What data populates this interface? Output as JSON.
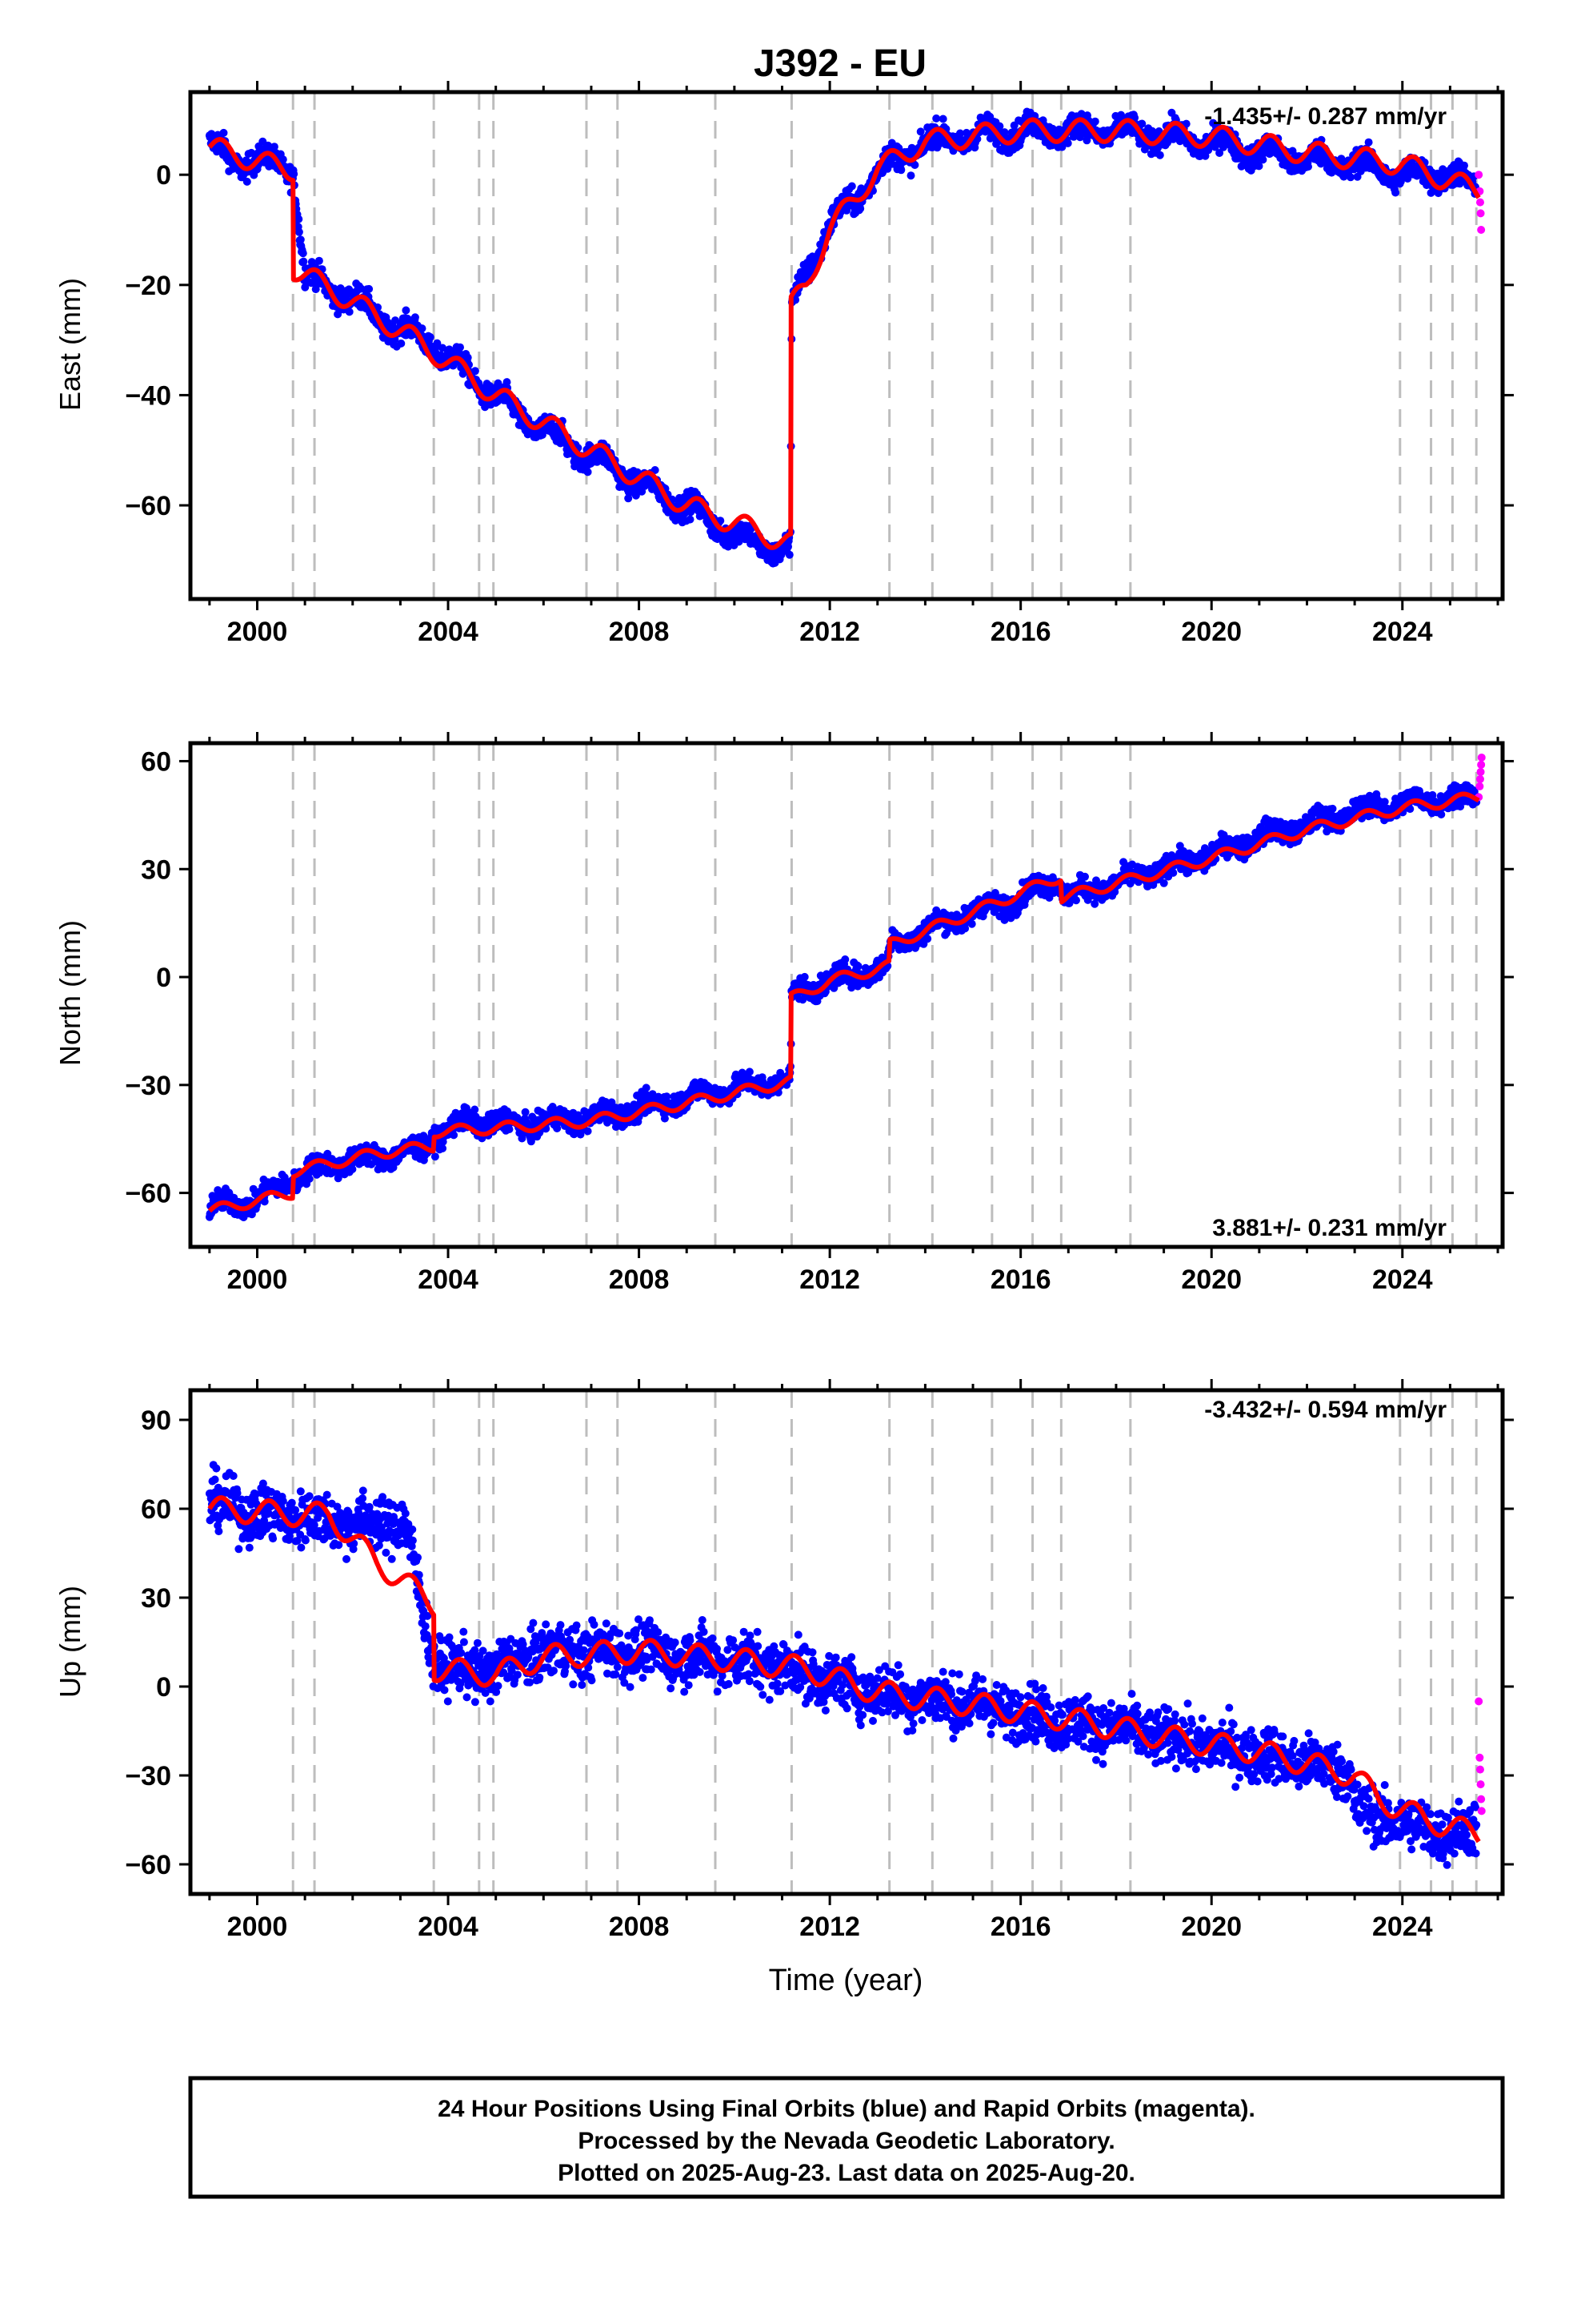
{
  "colors": {
    "final_orbits": "#0000ff",
    "rapid_orbits": "#ff00ff",
    "model_fit": "#ff0000",
    "event_lines": "#bdbdbd",
    "frame": "#000000"
  },
  "chart_data": [
    {
      "panel": "east",
      "type": "scatter",
      "title": "J392 - EU",
      "xlabel": "",
      "ylabel": "East (mm)",
      "rate": "-1.435+/- 0.287 mm/yr",
      "rate_placement": "top-right",
      "xlim": [
        1998.6,
        2026.1
      ],
      "ylim": [
        -77,
        15
      ],
      "xticks": [
        2000,
        2004,
        2008,
        2012,
        2016,
        2020,
        2024
      ],
      "yticks": [
        0,
        -20,
        -40,
        -60
      ],
      "event_lines": [
        2000.75,
        2001.2,
        2003.7,
        2004.65,
        2004.95,
        2006.9,
        2007.55,
        2009.6,
        2011.2,
        2013.25,
        2014.15,
        2015.4,
        2016.25,
        2016.85,
        2018.3,
        2023.95,
        2024.6,
        2025.05,
        2025.55
      ],
      "series": [
        {
          "style": "dots",
          "color": "#0000ff",
          "scatter_mm": 2.2,
          "x": [
            1999.0,
            1999.5,
            2000.0,
            2000.6,
            2000.75,
            2001.0,
            2001.5,
            2002.0,
            2002.5,
            2003.0,
            2003.5,
            2004.0,
            2004.5,
            2005.0,
            2005.5,
            2006.0,
            2006.5,
            2007.0,
            2007.5,
            2008.0,
            2008.5,
            2009.0,
            2009.5,
            2010.0,
            2010.5,
            2011.0,
            2011.18,
            2011.2,
            2011.5,
            2012.0,
            2012.5,
            2013.0,
            2013.5,
            2014.0,
            2015.0,
            2016.0,
            2017.0,
            2018.0,
            2019.0,
            2020.0,
            2021.0,
            2022.0,
            2023.0,
            2024.0,
            2025.0,
            2025.55
          ],
          "y": [
            6,
            2,
            3,
            1,
            1,
            -18,
            -21,
            -22,
            -26,
            -28,
            -30,
            -33,
            -37,
            -40,
            -44,
            -46,
            -49,
            -51,
            -53,
            -56,
            -58,
            -60,
            -63,
            -65,
            -67,
            -68,
            -68,
            -24,
            -18,
            -9,
            -5,
            1,
            3,
            6,
            7,
            8,
            8,
            8,
            7,
            6,
            4,
            3,
            2,
            0,
            0,
            -3
          ]
        },
        {
          "style": "dots",
          "color": "#ff00ff",
          "scatter_mm": 0,
          "x": [
            2025.6,
            2025.62,
            2025.63,
            2025.64,
            2025.65
          ],
          "y": [
            0,
            -3,
            -5,
            -7,
            -10
          ]
        },
        {
          "style": "line",
          "color": "#ff0000",
          "seasonal_mm": 2,
          "x": [
            1999.0,
            2000.6,
            2000.75,
            2000.76,
            2002.0,
            2003.5,
            2005.0,
            2007.0,
            2009.0,
            2011.18,
            2011.19,
            2011.5,
            2012.0,
            2013.0,
            2014.0,
            2016.0,
            2018.0,
            2020.0,
            2022.0,
            2024.0,
            2025.6
          ],
          "y": [
            5,
            1,
            1,
            -17,
            -23,
            -31,
            -40,
            -50,
            -60,
            -67,
            -24,
            -20,
            -10,
            1,
            6,
            8,
            8,
            7,
            4,
            2,
            -3
          ]
        }
      ]
    },
    {
      "panel": "north",
      "type": "scatter",
      "title": "",
      "xlabel": "",
      "ylabel": "North (mm)",
      "rate": "3.881+/- 0.231 mm/yr",
      "rate_placement": "bottom-right",
      "xlim": [
        1998.6,
        2026.1
      ],
      "ylim": [
        -75,
        65
      ],
      "xticks": [
        2000,
        2004,
        2008,
        2012,
        2016,
        2020,
        2024
      ],
      "yticks": [
        60,
        30,
        0,
        -30,
        -60
      ],
      "event_lines": [
        2000.75,
        2001.2,
        2003.7,
        2004.65,
        2004.95,
        2006.9,
        2007.55,
        2009.6,
        2011.2,
        2013.25,
        2014.15,
        2015.4,
        2016.25,
        2016.85,
        2018.3,
        2023.95,
        2024.6,
        2025.05,
        2025.55
      ],
      "series": [
        {
          "style": "dots",
          "color": "#0000ff",
          "scatter_mm": 3,
          "x": [
            1999.0,
            2000.0,
            2000.75,
            2001.5,
            2002.5,
            2003.5,
            2003.7,
            2004.5,
            2005.5,
            2006.5,
            2007.5,
            2008.5,
            2009.5,
            2010.5,
            2011.18,
            2011.2,
            2012.0,
            2013.2,
            2013.3,
            2014.0,
            2015.0,
            2016.0,
            2016.8,
            2016.9,
            2018.0,
            2019.0,
            2020.0,
            2021.0,
            2022.0,
            2023.0,
            2024.0,
            2025.0,
            2025.55
          ],
          "y": [
            -64,
            -62,
            -56,
            -52,
            -50,
            -48,
            -44,
            -40,
            -41,
            -40,
            -38,
            -35,
            -32,
            -30,
            -28,
            -5,
            -1,
            3,
            9,
            13,
            18,
            22,
            28,
            22,
            26,
            30,
            34,
            39,
            42,
            46,
            48,
            50,
            50
          ]
        },
        {
          "style": "dots",
          "color": "#ff00ff",
          "scatter_mm": 0,
          "x": [
            2025.6,
            2025.62,
            2025.63,
            2025.64,
            2025.65,
            2025.66
          ],
          "y": [
            50,
            53,
            55,
            57,
            59,
            61
          ]
        },
        {
          "style": "line",
          "color": "#ff0000",
          "seasonal_mm": 1.5,
          "x": [
            1999.0,
            2000.74,
            2000.76,
            2002.5,
            2003.69,
            2003.71,
            2005.0,
            2007.0,
            2009.0,
            2011.18,
            2011.19,
            2012.0,
            2013.24,
            2013.26,
            2015.0,
            2016.84,
            2016.86,
            2018.0,
            2020.0,
            2022.0,
            2024.0,
            2025.6
          ],
          "y": [
            -65,
            -60,
            -54,
            -49,
            -47,
            -43,
            -42,
            -40,
            -35,
            -29,
            -6,
            -1,
            3,
            9,
            18,
            28,
            22,
            26,
            33,
            41,
            47,
            50
          ]
        }
      ]
    },
    {
      "panel": "up",
      "type": "scatter",
      "title": "",
      "xlabel": "Time (year)",
      "ylabel": "Up (mm)",
      "rate": "-3.432+/- 0.594 mm/yr",
      "rate_placement": "top-right",
      "xlim": [
        1998.6,
        2026.1
      ],
      "ylim": [
        -70,
        100
      ],
      "xticks": [
        2000,
        2004,
        2008,
        2012,
        2016,
        2020,
        2024
      ],
      "yticks": [
        90,
        60,
        30,
        0,
        -30,
        -60
      ],
      "event_lines": [
        2000.75,
        2001.2,
        2003.7,
        2004.65,
        2004.95,
        2006.9,
        2007.55,
        2009.6,
        2011.2,
        2013.25,
        2014.15,
        2015.4,
        2016.25,
        2016.85,
        2018.3,
        2023.95,
        2024.6,
        2025.05,
        2025.55
      ],
      "series": [
        {
          "style": "dots",
          "color": "#0000ff",
          "scatter_mm": 9,
          "x": [
            1999.0,
            2000.0,
            2001.0,
            2002.0,
            2003.0,
            2003.1,
            2003.7,
            2004.5,
            2005.0,
            2006.0,
            2007.0,
            2008.0,
            2009.0,
            2010.0,
            2011.0,
            2012.0,
            2013.0,
            2014.0,
            2015.0,
            2016.0,
            2017.0,
            2018.0,
            2019.0,
            2020.0,
            2021.0,
            2022.0,
            2022.9,
            2023.0,
            2024.0,
            2025.0,
            2025.55
          ],
          "y": [
            62,
            58,
            57,
            55,
            55,
            55,
            8,
            5,
            6,
            12,
            12,
            12,
            10,
            9,
            7,
            2,
            -2,
            -4,
            -6,
            -9,
            -12,
            -14,
            -17,
            -20,
            -23,
            -26,
            -28,
            -42,
            -46,
            -50,
            -48
          ]
        },
        {
          "style": "dots",
          "color": "#ff00ff",
          "scatter_mm": 0,
          "x": [
            2025.6,
            2025.62,
            2025.63,
            2025.64,
            2025.65,
            2025.66
          ],
          "y": [
            -5,
            -24,
            -28,
            -33,
            -38,
            -42
          ]
        },
        {
          "style": "line",
          "color": "#ff0000",
          "seasonal_mm": 4,
          "x": [
            1999.0,
            2001.0,
            2001.5,
            2002.5,
            2003.7,
            2003.71,
            2005.0,
            2006.0,
            2008.0,
            2010.0,
            2011.5,
            2013.0,
            2015.0,
            2017.0,
            2019.0,
            2021.0,
            2023.0,
            2023.5,
            2024.5,
            2025.6
          ],
          "y": [
            60,
            58,
            58,
            42,
            28,
            6,
            4,
            10,
            12,
            9,
            6,
            -2,
            -6,
            -11,
            -17,
            -22,
            -30,
            -38,
            -45,
            -50
          ]
        }
      ]
    }
  ],
  "footer": {
    "line1": "24 Hour Positions Using Final Orbits (blue) and Rapid Orbits (magenta).",
    "line2": "Processed by the Nevada Geodetic Laboratory.",
    "line3": "Plotted on 2025-Aug-23. Last data on 2025-Aug-20."
  }
}
